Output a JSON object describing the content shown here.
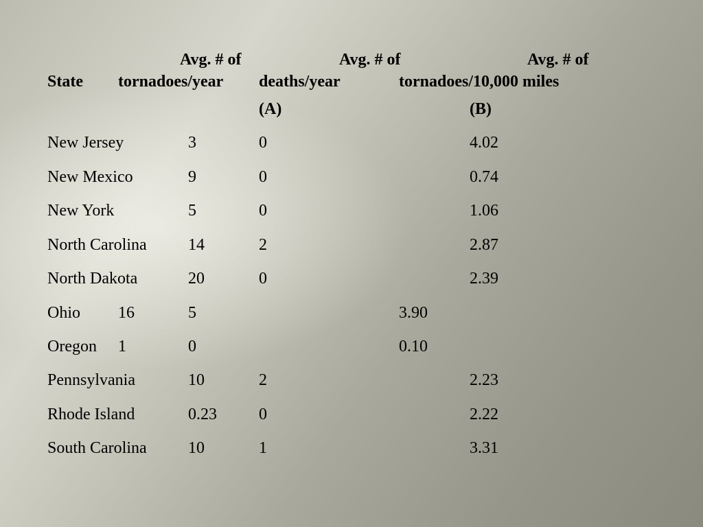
{
  "header": {
    "line1": {
      "c1": "Avg. # of",
      "c2": "Avg. # of",
      "c3": "Avg. # of"
    },
    "line2": {
      "state": "State",
      "c1": "tornadoes/year",
      "c2": "deaths/year",
      "c3": "tornadoes/10,000 miles"
    },
    "line3": {
      "a": "(A)",
      "b": "(B)"
    }
  },
  "rows": [
    {
      "state": "New Jersey",
      "tornadoes": "3",
      "deaths": "0",
      "per_miles": "4.02"
    },
    {
      "state": "New Mexico",
      "tornadoes": "9",
      "deaths": "0",
      "per_miles": "0.74"
    },
    {
      "state": "New York",
      "tornadoes": "5",
      "deaths": "0",
      "per_miles": "1.06"
    },
    {
      "state": "North Carolina",
      "tornadoes": "14",
      "deaths": "2",
      "per_miles": "2.87"
    },
    {
      "state": "North Dakota",
      "tornadoes": "20",
      "deaths": "0",
      "per_miles": "2.39"
    },
    {
      "state": "Ohio",
      "tornadoes": "16",
      "deaths": "5",
      "per_miles": "3.90"
    },
    {
      "state": "Oregon",
      "tornadoes": "1",
      "deaths": "0",
      "per_miles": "0.10"
    },
    {
      "state": "Pennsylvania",
      "tornadoes": "10",
      "deaths": "2",
      "per_miles": "2.23"
    },
    {
      "state": "Rhode Island",
      "tornadoes": "0.23",
      "deaths": "0",
      "per_miles": "2.22"
    },
    {
      "state": "South Carolina",
      "tornadoes": "10",
      "deaths": "1",
      "per_miles": "3.31"
    }
  ]
}
